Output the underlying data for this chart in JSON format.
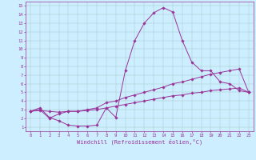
{
  "xlabel": "Windchill (Refroidissement éolien,°C)",
  "background_color": "#cceeff",
  "line_color": "#993399",
  "xlim": [
    -0.5,
    23.5
  ],
  "ylim": [
    0.5,
    15.5
  ],
  "xticks": [
    0,
    1,
    2,
    3,
    4,
    5,
    6,
    7,
    8,
    9,
    10,
    11,
    12,
    13,
    14,
    15,
    16,
    17,
    18,
    19,
    20,
    21,
    22,
    23
  ],
  "yticks": [
    1,
    2,
    3,
    4,
    5,
    6,
    7,
    8,
    9,
    10,
    11,
    12,
    13,
    14,
    15
  ],
  "curve1_x": [
    0,
    1,
    2,
    3,
    4,
    5,
    6,
    7,
    8,
    9,
    10,
    11,
    12,
    13,
    14,
    15,
    16,
    17,
    18,
    19,
    20,
    21,
    22,
    23
  ],
  "curve1_y": [
    2.8,
    3.2,
    2.1,
    1.7,
    1.2,
    1.1,
    1.1,
    1.2,
    3.2,
    2.1,
    7.5,
    11.0,
    13.0,
    14.2,
    14.8,
    14.3,
    11.0,
    8.5,
    7.5,
    7.5,
    6.2,
    6.0,
    5.2,
    5.0
  ],
  "curve2_x": [
    0,
    1,
    2,
    3,
    4,
    5,
    6,
    7,
    8,
    9,
    10,
    11,
    12,
    13,
    14,
    15,
    16,
    17,
    18,
    19,
    20,
    21,
    22,
    23
  ],
  "curve2_y": [
    2.8,
    3.0,
    2.0,
    2.5,
    2.8,
    2.8,
    3.0,
    3.2,
    3.8,
    4.0,
    4.4,
    4.7,
    5.0,
    5.3,
    5.6,
    6.0,
    6.2,
    6.5,
    6.8,
    7.1,
    7.3,
    7.5,
    7.7,
    5.0
  ],
  "curve3_x": [
    0,
    1,
    2,
    3,
    4,
    5,
    6,
    7,
    8,
    9,
    10,
    11,
    12,
    13,
    14,
    15,
    16,
    17,
    18,
    19,
    20,
    21,
    22,
    23
  ],
  "curve3_y": [
    2.8,
    2.9,
    2.8,
    2.7,
    2.8,
    2.8,
    2.9,
    3.0,
    3.2,
    3.4,
    3.6,
    3.8,
    4.0,
    4.2,
    4.4,
    4.6,
    4.7,
    4.9,
    5.0,
    5.2,
    5.3,
    5.4,
    5.5,
    5.0
  ],
  "xlabel_fontsize": 5.0,
  "tick_fontsize": 4.0,
  "linewidth": 0.7,
  "markersize": 1.8
}
